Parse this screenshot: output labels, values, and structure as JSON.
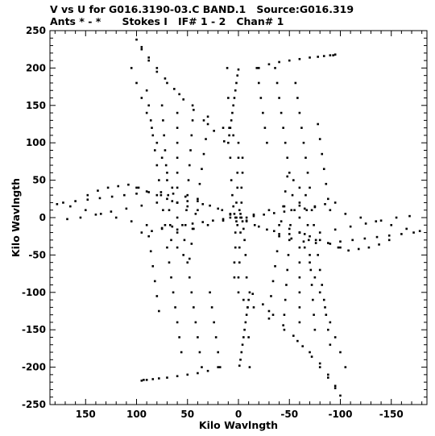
{
  "header": {
    "line1_left": "V vs U for G016.3190-03.C BAND.1",
    "line1_right": "Source:G016.319",
    "line2_ants": "Ants * - *",
    "line2_stokes": "Stokes I",
    "line2_if": "IF# 1 - 2",
    "line2_chan": "Chan# 1"
  },
  "chart_data": {
    "type": "scatter",
    "title": "V vs U for G016.3190-03.C BAND.1   Source:G016.319",
    "subtitle": "Ants * - *     Stokes I   IF# 1 - 2   Chan# 1",
    "xlabel": "Kilo Wavlngth",
    "ylabel": "Kilo Wavlngth",
    "xlim": [
      185,
      -185
    ],
    "ylim": [
      -250,
      250
    ],
    "x_reversed": true,
    "xticks": [
      150,
      100,
      50,
      0,
      -50,
      -100,
      -150
    ],
    "xtick_labels": [
      "150",
      "100",
      "50",
      "0",
      "-50",
      "-100",
      "-150"
    ],
    "yticks": [
      250,
      200,
      150,
      100,
      50,
      0,
      -50,
      -100,
      -150,
      -200,
      -250
    ],
    "ytick_labels": [
      "250",
      "200",
      "150",
      "100",
      "50",
      "0",
      "-50",
      "-100",
      "-150",
      "-200",
      "-250"
    ],
    "grid": false,
    "marker_color": "#000000",
    "uv_tracks": [
      {
        "x": [
          0,
          1,
          2,
          3,
          4,
          5,
          6,
          7,
          8,
          9,
          10
        ],
        "y": [
          198,
          190,
          180,
          170,
          160,
          150,
          140,
          130,
          120,
          110,
          100
        ]
      },
      {
        "x": [
          11,
          10,
          9,
          8,
          7,
          6,
          5,
          4,
          3,
          2,
          1
        ],
        "y": [
          200,
          160,
          120,
          80,
          50,
          30,
          15,
          5,
          0,
          -5,
          -10
        ]
      },
      {
        "x": [
          -1,
          -2,
          -3,
          -4,
          -5,
          -6,
          -7,
          -8,
          -9,
          -10,
          -11
        ],
        "y": [
          -198,
          -190,
          -180,
          -170,
          -160,
          -150,
          -140,
          -130,
          -120,
          -110,
          -100
        ]
      },
      {
        "x": [
          -11,
          -10,
          -9,
          -8,
          -7,
          -6,
          -5,
          -4,
          -3,
          -2,
          -1
        ],
        "y": [
          -200,
          -160,
          -120,
          -80,
          -50,
          -30,
          -15,
          -5,
          0,
          5,
          10
        ]
      },
      {
        "x": [
          0,
          0,
          1,
          1,
          2,
          2,
          3,
          3,
          4,
          4
        ],
        "y": [
          100,
          80,
          60,
          40,
          20,
          0,
          -20,
          -40,
          -60,
          -80
        ]
      },
      {
        "x": [
          0,
          0,
          -1,
          -1,
          -2,
          -2,
          -3,
          -3,
          -4,
          -4
        ],
        "y": [
          -100,
          -80,
          -60,
          -40,
          -20,
          0,
          20,
          40,
          60,
          80
        ]
      },
      {
        "x": [
          100,
          95,
          88,
          80,
          70,
          58,
          45,
          30,
          15,
          5
        ],
        "y": [
          238,
          225,
          210,
          195,
          180,
          165,
          150,
          135,
          120,
          110
        ]
      },
      {
        "x": [
          -100,
          -95,
          -88,
          -80,
          -70,
          -58,
          -45,
          -30,
          -15,
          -5
        ],
        "y": [
          -238,
          -225,
          -210,
          -195,
          -180,
          -165,
          -150,
          -135,
          -120,
          -110
        ]
      },
      {
        "x": [
          95,
          88,
          80,
          72,
          63,
          54,
          44,
          34,
          24,
          14
        ],
        "y": [
          228,
          214,
          200,
          186,
          172,
          158,
          144,
          130,
          116,
          102
        ]
      },
      {
        "x": [
          -95,
          -88,
          -80,
          -72,
          -63,
          -54,
          -44,
          -34,
          -24,
          -14
        ],
        "y": [
          -228,
          -214,
          -200,
          -186,
          -172,
          -158,
          -144,
          -130,
          -116,
          -102
        ]
      },
      {
        "x": [
          -20,
          -30,
          -40,
          -50,
          -60,
          -70,
          -78,
          -84,
          -90,
          -93,
          -95
        ],
        "y": [
          200,
          205,
          208,
          210,
          212,
          214,
          215,
          216,
          217,
          217,
          218
        ]
      },
      {
        "x": [
          20,
          30,
          40,
          50,
          60,
          70,
          78,
          84,
          90,
          93,
          95
        ],
        "y": [
          -200,
          -205,
          -208,
          -210,
          -212,
          -214,
          -215,
          -216,
          -217,
          -217,
          -218
        ]
      },
      {
        "x": [
          105,
          100,
          95,
          90,
          85,
          80,
          75,
          70,
          65,
          60
        ],
        "y": [
          200,
          180,
          160,
          140,
          120,
          100,
          80,
          60,
          40,
          20
        ]
      },
      {
        "x": [
          -105,
          -100,
          -95,
          -90,
          -85,
          -80,
          -75,
          -70,
          -65,
          -60
        ],
        "y": [
          -200,
          -180,
          -160,
          -140,
          -120,
          -100,
          -80,
          -60,
          -40,
          -20
        ]
      },
      {
        "x": [
          90,
          88,
          86,
          84,
          82,
          80,
          78,
          76,
          74,
          72
        ],
        "y": [
          170,
          150,
          130,
          110,
          90,
          70,
          50,
          30,
          10,
          -10
        ]
      },
      {
        "x": [
          -90,
          -88,
          -86,
          -84,
          -82,
          -80,
          -78,
          -76,
          -74,
          -72
        ],
        "y": [
          -170,
          -150,
          -130,
          -110,
          -90,
          -70,
          -50,
          -30,
          -10,
          10
        ]
      },
      {
        "x": [
          75,
          74,
          73,
          72,
          71,
          70,
          69,
          68,
          67,
          66
        ],
        "y": [
          150,
          130,
          110,
          90,
          70,
          50,
          30,
          10,
          -10,
          -30
        ]
      },
      {
        "x": [
          -75,
          -74,
          -73,
          -72,
          -71,
          -70,
          -69,
          -68,
          -67,
          -66
        ],
        "y": [
          -150,
          -130,
          -110,
          -90,
          -70,
          -50,
          -30,
          -10,
          10,
          30
        ]
      },
      {
        "x": [
          60,
          60,
          60,
          60,
          60,
          60,
          60,
          60,
          60,
          60
        ],
        "y": [
          140,
          120,
          100,
          80,
          60,
          40,
          20,
          0,
          -20,
          -40
        ]
      },
      {
        "x": [
          -60,
          -60,
          -60,
          -60,
          -60,
          -60,
          -60,
          -60,
          -60,
          -60
        ],
        "y": [
          -140,
          -120,
          -100,
          -80,
          -60,
          -40,
          -20,
          0,
          20,
          40
        ]
      },
      {
        "x": [
          45,
          46,
          47,
          48,
          49,
          50,
          51,
          52,
          53,
          54
        ],
        "y": [
          130,
          110,
          90,
          70,
          50,
          30,
          10,
          -10,
          -30,
          -50
        ]
      },
      {
        "x": [
          -45,
          -46,
          -47,
          -48,
          -49,
          -50,
          -51,
          -52,
          -53,
          -54
        ],
        "y": [
          -130,
          -110,
          -90,
          -70,
          -50,
          -30,
          -10,
          10,
          30,
          50
        ]
      },
      {
        "x": [
          30,
          32,
          34,
          36,
          38,
          40,
          42,
          44,
          46,
          48
        ],
        "y": [
          125,
          105,
          85,
          65,
          45,
          25,
          5,
          -15,
          -35,
          -55
        ]
      },
      {
        "x": [
          -30,
          -32,
          -34,
          -36,
          -38,
          -40,
          -42,
          -44,
          -46,
          -48
        ],
        "y": [
          -125,
          -105,
          -85,
          -65,
          -45,
          -25,
          -5,
          15,
          35,
          55
        ]
      },
      {
        "x": [
          172,
          160,
          148,
          136,
          124,
          112,
          100,
          88,
          76,
          64,
          52,
          40,
          28,
          16,
          8
        ],
        "y": [
          20,
          22,
          24,
          26,
          28,
          30,
          32,
          34,
          34,
          32,
          28,
          22,
          16,
          10,
          4
        ]
      },
      {
        "x": [
          -172,
          -160,
          -148,
          -136,
          -124,
          -112,
          -100,
          -88,
          -76,
          -64,
          -52,
          -40,
          -28,
          -16,
          -8
        ],
        "y": [
          -20,
          -22,
          -24,
          -26,
          -28,
          -30,
          -32,
          -34,
          -34,
          -32,
          -28,
          -22,
          -16,
          -10,
          -4
        ]
      },
      {
        "x": [
          168,
          155,
          140,
          125,
          110,
          95,
          80,
          65,
          50,
          35,
          20,
          8
        ],
        "y": [
          -2,
          0,
          4,
          8,
          12,
          16,
          20,
          22,
          22,
          18,
          12,
          5
        ]
      },
      {
        "x": [
          -168,
          -155,
          -140,
          -125,
          -110,
          -95,
          -80,
          -65,
          -50,
          -35,
          -20,
          -8
        ],
        "y": [
          2,
          0,
          -4,
          -8,
          -12,
          -16,
          -20,
          -22,
          -22,
          -18,
          -12,
          -5
        ]
      },
      {
        "x": [
          -178,
          -165,
          -150,
          -135,
          -120,
          -105,
          -90,
          -75,
          -60,
          -45,
          -30,
          -15
        ],
        "y": [
          -18,
          -15,
          -10,
          -5,
          0,
          5,
          10,
          14,
          16,
          15,
          10,
          4
        ]
      },
      {
        "x": [
          178,
          165,
          150,
          135,
          120,
          105,
          90,
          75,
          60,
          45,
          30,
          15
        ],
        "y": [
          18,
          15,
          10,
          5,
          0,
          -5,
          -10,
          -14,
          -16,
          -15,
          -10,
          -4
        ]
      },
      {
        "x": [
          -148,
          -138,
          -128,
          -118,
          -108,
          -98
        ],
        "y": [
          -30,
          -36,
          -40,
          -42,
          -44,
          -40
        ]
      },
      {
        "x": [
          148,
          138,
          128,
          118,
          108,
          98
        ],
        "y": [
          30,
          36,
          40,
          42,
          44,
          40
        ]
      },
      {
        "x": [
          95,
          85,
          75,
          65,
          55,
          45,
          35,
          25,
          15,
          8
        ],
        "y": [
          -20,
          -18,
          -15,
          -12,
          -10,
          -8,
          -6,
          -4,
          -2,
          0
        ]
      },
      {
        "x": [
          -95,
          -85,
          -75,
          -65,
          -55,
          -45,
          -35,
          -25,
          -15,
          -8
        ],
        "y": [
          20,
          18,
          15,
          12,
          10,
          8,
          6,
          4,
          2,
          0
        ]
      },
      {
        "x": [
          -40,
          -50,
          -60,
          -70,
          -80,
          -90,
          -100
        ],
        "y": [
          -10,
          -15,
          -20,
          -25,
          -30,
          -35,
          -40
        ]
      },
      {
        "x": [
          40,
          50,
          60,
          70,
          80,
          90,
          100
        ],
        "y": [
          10,
          15,
          20,
          25,
          30,
          35,
          40
        ]
      },
      {
        "x": [
          88,
          86,
          84,
          82,
          80,
          78
        ],
        "y": [
          -25,
          -45,
          -65,
          -85,
          -105,
          -125
        ]
      },
      {
        "x": [
          -88,
          -86,
          -84,
          -82,
          -80,
          -78
        ],
        "y": [
          25,
          45,
          65,
          85,
          105,
          125
        ]
      },
      {
        "x": [
          70,
          68,
          66,
          64,
          62,
          60,
          58,
          56
        ],
        "y": [
          -40,
          -60,
          -80,
          -100,
          -120,
          -140,
          -160,
          -180
        ]
      },
      {
        "x": [
          -70,
          -68,
          -66,
          -64,
          -62,
          -60,
          -58,
          -56
        ],
        "y": [
          40,
          60,
          80,
          100,
          120,
          140,
          160,
          180
        ]
      },
      {
        "x": [
          50,
          48,
          46,
          44,
          42,
          40,
          38,
          36
        ],
        "y": [
          -60,
          -80,
          -100,
          -120,
          -140,
          -160,
          -180,
          -200
        ]
      },
      {
        "x": [
          -50,
          -48,
          -46,
          -44,
          -42,
          -40,
          -38,
          -36
        ],
        "y": [
          60,
          80,
          100,
          120,
          140,
          160,
          180,
          200
        ]
      },
      {
        "x": [
          28,
          26,
          24,
          22,
          20,
          18
        ],
        "y": [
          -100,
          -120,
          -140,
          -160,
          -180,
          -200
        ]
      },
      {
        "x": [
          -28,
          -26,
          -24,
          -22,
          -20,
          -18
        ],
        "y": [
          100,
          120,
          140,
          160,
          180,
          200
        ]
      }
    ]
  }
}
